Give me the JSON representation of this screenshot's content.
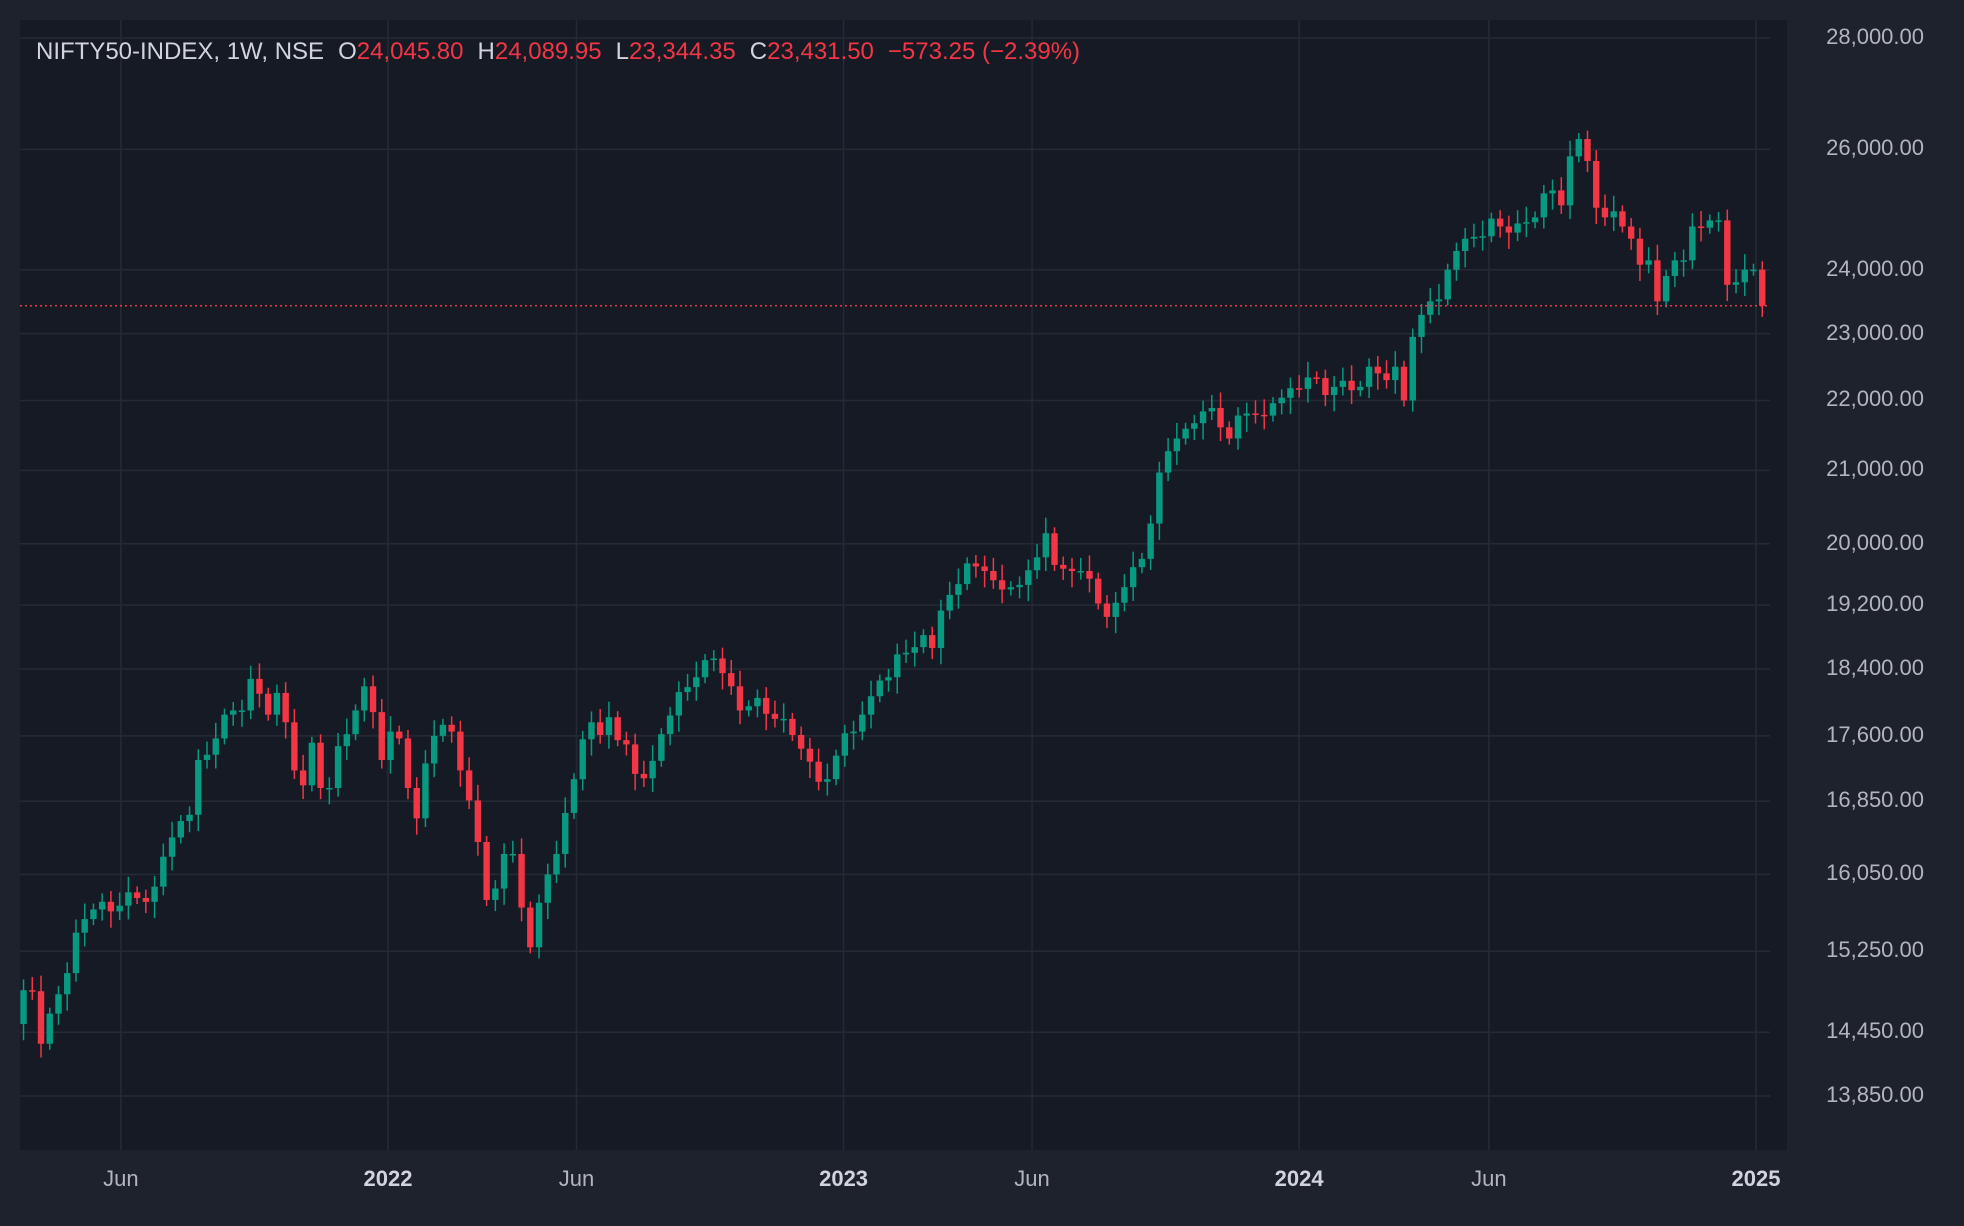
{
  "chart_data": {
    "type": "candlestick",
    "symbol": "NIFTY50-INDEX, 1W, NSE",
    "ohlc": {
      "o_label": "O",
      "o": "24,045.80",
      "h_label": "H",
      "h": "24,089.95",
      "l_label": "L",
      "l": "23,344.35",
      "c_label": "C",
      "c": "23,431.50",
      "change": "−573.25 (−2.39%)"
    },
    "y_ticks": [
      "28,000.00",
      "26,000.00",
      "24,000.00",
      "23,000.00",
      "22,000.00",
      "21,000.00",
      "20,000.00",
      "19,200.00",
      "18,400.00",
      "17,600.00",
      "16,850.00",
      "16,050.00",
      "15,250.00",
      "14,450.00",
      "13,850.00"
    ],
    "y_tick_values": [
      28000,
      26000,
      24000,
      23000,
      22000,
      21000,
      20000,
      19200,
      18400,
      17600,
      16850,
      16050,
      15250,
      14450,
      13850
    ],
    "y_scale": "log",
    "x_ticks": [
      {
        "label": "Jun",
        "date": "2021-06-01",
        "year": false
      },
      {
        "label": "2022",
        "date": "2022-01-01",
        "year": true
      },
      {
        "label": "Jun",
        "date": "2022-06-01",
        "year": false
      },
      {
        "label": "2023",
        "date": "2023-01-01",
        "year": true
      },
      {
        "label": "Jun",
        "date": "2023-06-01",
        "year": false
      },
      {
        "label": "2024",
        "date": "2024-01-01",
        "year": true
      },
      {
        "label": "Jun",
        "date": "2024-06-01",
        "year": false
      },
      {
        "label": "2025",
        "date": "2025-01-01",
        "year": true
      }
    ],
    "first_week": "2021-03-01",
    "last_close": 23431.5,
    "colors": {
      "up": "#089981",
      "down": "#f23645",
      "grid": "#262a35",
      "text": "#b2b5be"
    },
    "closes": [
      14940,
      14530,
      14860,
      14850,
      14340,
      14630,
      14820,
      15030,
      15440,
      15580,
      15680,
      15760,
      15660,
      15720,
      15860,
      15800,
      15760,
      15920,
      16240,
      16450,
      16630,
      16700,
      17320,
      17380,
      17570,
      17850,
      17900,
      17900,
      18280,
      18100,
      17850,
      18110,
      17760,
      17200,
      17030,
      17520,
      17000,
      17000,
      17480,
      17620,
      17900,
      18190,
      17880,
      17320,
      17650,
      17570,
      17000,
      16660,
      17280,
      17600,
      17730,
      17650,
      17200,
      16860,
      16400,
      15780,
      15900,
      16270,
      16270,
      15700,
      15290,
      15750,
      16050,
      16270,
      16720,
      17100,
      17560,
      17760,
      17610,
      17820,
      17550,
      17500,
      17160,
      17110,
      17310,
      17620,
      17840,
      18120,
      18180,
      18300,
      18510,
      18530,
      18350,
      18190,
      17900,
      17950,
      18050,
      17860,
      17800,
      17800,
      17610,
      17450,
      17300,
      17070,
      17100,
      17370,
      17630,
      17650,
      17850,
      18070,
      18260,
      18300,
      18580,
      18600,
      18670,
      18820,
      18660,
      19130,
      19330,
      19470,
      19740,
      19700,
      19640,
      19520,
      19400,
      19430,
      19460,
      19650,
      19820,
      20140,
      19720,
      19670,
      19640,
      19640,
      19540,
      19220,
      19050,
      19230,
      19430,
      19690,
      19800,
      20270,
      20970,
      21270,
      21450,
      21590,
      21670,
      21840,
      21890,
      21610,
      21450,
      21780,
      21810,
      21790,
      21780,
      21960,
      22040,
      22180,
      22170,
      22340,
      22330,
      22080,
      22200,
      22290,
      22150,
      22200,
      22500,
      22400,
      22300,
      22500,
      22000,
      22950,
      23290,
      23500,
      23530,
      24000,
      24300,
      24500,
      24530,
      24540,
      24830,
      24700,
      24600,
      24750,
      24770,
      24850,
      25250,
      25300,
      25050,
      25880,
      26180,
      25800,
      25010,
      24850,
      24950,
      24700,
      24500,
      24080,
      24150,
      23500,
      23900,
      24150,
      24150,
      24700,
      24680,
      24800,
      24800,
      23760,
      23800,
      24000,
      24000,
      23431
    ]
  }
}
